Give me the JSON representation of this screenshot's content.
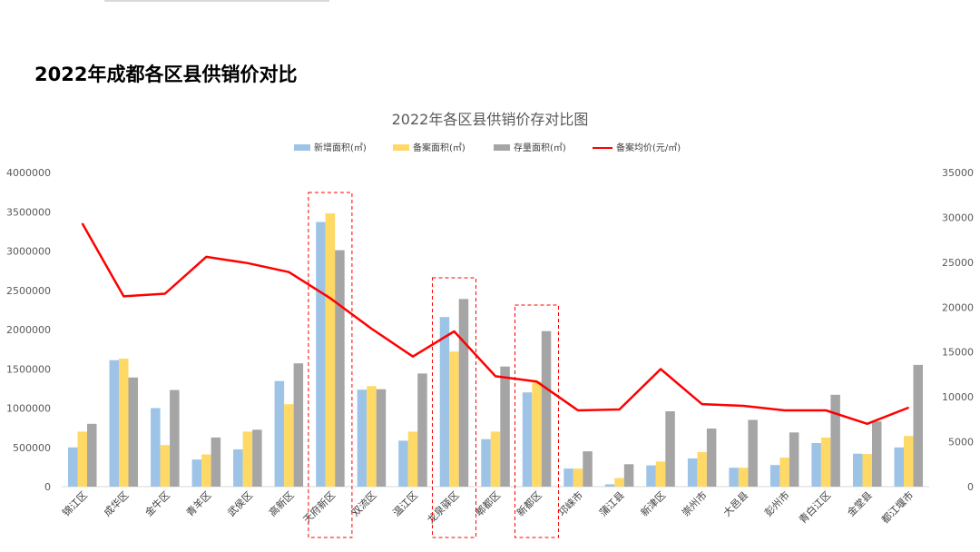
{
  "page": {
    "title": "2022年成都各区县供销价对比"
  },
  "colors": {
    "new": "#9DC3E6",
    "filed": "#FFD966",
    "stock": "#A5A5A5",
    "price": "#FF0000",
    "highlight": "#FF0000"
  },
  "chart_data": {
    "type": "bar",
    "title": "2022年各区县供销价存对比图",
    "categories": [
      "锦江区",
      "成华区",
      "金牛区",
      "青羊区",
      "武侯区",
      "高新区",
      "天府新区",
      "双流区",
      "温江区",
      "龙泉驿区",
      "郫都区",
      "新都区",
      "邛崃市",
      "蒲江县",
      "新津区",
      "崇州市",
      "大邑县",
      "彭州市",
      "青白江区",
      "金堂县",
      "都江堰市"
    ],
    "series": [
      {
        "name": "新增面积(㎡)",
        "axis": "left",
        "kind": "bar",
        "values": [
          500000,
          1610000,
          1000000,
          345000,
          475000,
          1345000,
          3370000,
          1235000,
          585000,
          2160000,
          605000,
          1200000,
          230000,
          30000,
          270000,
          360000,
          240000,
          275000,
          555000,
          420000,
          500000
        ]
      },
      {
        "name": "备案面积(㎡)",
        "axis": "left",
        "kind": "bar",
        "values": [
          700000,
          1630000,
          530000,
          410000,
          700000,
          1050000,
          3480000,
          1280000,
          700000,
          1720000,
          700000,
          1340000,
          230000,
          110000,
          320000,
          440000,
          240000,
          370000,
          625000,
          415000,
          645000
        ]
      },
      {
        "name": "存量面积(㎡)",
        "axis": "left",
        "kind": "bar",
        "values": [
          800000,
          1390000,
          1230000,
          625000,
          725000,
          1570000,
          3010000,
          1240000,
          1440000,
          2390000,
          1530000,
          1980000,
          450000,
          285000,
          960000,
          740000,
          850000,
          690000,
          1170000,
          830000,
          1550000
        ]
      },
      {
        "name": "备案均价(元/㎡)",
        "axis": "right",
        "kind": "line",
        "values": [
          29300,
          21200,
          21500,
          25600,
          24900,
          23900,
          21000,
          17600,
          14500,
          17300,
          12300,
          11700,
          8500,
          8600,
          13100,
          9200,
          9000,
          8500,
          8500,
          7000,
          8800
        ]
      }
    ],
    "y_left": {
      "min": 0,
      "max": 4000000,
      "step": 500000,
      "ticks": [
        "0",
        "500000",
        "1000000",
        "1500000",
        "2000000",
        "2500000",
        "3000000",
        "3500000",
        "4000000"
      ]
    },
    "y_right": {
      "min": 0,
      "max": 35000,
      "step": 5000,
      "ticks": [
        "0",
        "5000",
        "10000",
        "15000",
        "20000",
        "25000",
        "30000",
        "35000"
      ]
    },
    "legend_position": "top-center",
    "highlighted_categories": [
      "天府新区",
      "龙泉驿区",
      "新都区"
    ]
  }
}
